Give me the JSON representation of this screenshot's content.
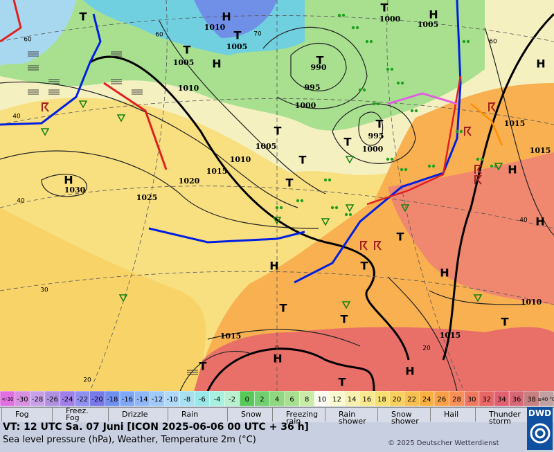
{
  "map": {
    "isobar_labels": [
      "1010",
      "1005",
      "1005",
      "1010",
      "990",
      "995",
      "1000",
      "1000",
      "1005",
      "995",
      "1000",
      "1005",
      "1010",
      "1015",
      "1020",
      "1025",
      "1030",
      "1015",
      "1015",
      "1010",
      "1015",
      "1015"
    ],
    "pressure_centers": [
      "H",
      "T",
      "T",
      "H",
      "T",
      "T",
      "H",
      "T",
      "T",
      "T",
      "T",
      "T",
      "T",
      "H",
      "H",
      "H",
      "H",
      "T",
      "T",
      "H",
      "H",
      "T",
      "T",
      "T",
      "H",
      "T",
      "T",
      "H"
    ],
    "grid_labels": [
      "60",
      "60",
      "70",
      "60",
      "40",
      "40",
      "40",
      "30",
      "20",
      "0",
      "20"
    ]
  },
  "temperature_scale": {
    "labels": [
      "<-30",
      -30,
      -28,
      -26,
      -24,
      -22,
      -20,
      -18,
      -16,
      -14,
      -12,
      -10,
      -8,
      -6,
      -4,
      -2,
      0,
      2,
      4,
      6,
      8,
      10,
      12,
      14,
      16,
      18,
      20,
      22,
      24,
      26,
      28,
      30,
      32,
      34,
      36,
      38,
      "≥40 °C"
    ]
  },
  "legend": {
    "entries": [
      "Fog",
      "Freez. Fog",
      "Drizzle",
      "Rain",
      "Snow",
      "Freezing rain",
      "Rain shower",
      "Snow shower",
      "Hail",
      "Thunder storm"
    ]
  },
  "footer": {
    "valid_time": "VT: 12 UTC Sa.  07 Juni [ICON 2025-06-06  00 UTC + 36 h]",
    "description": "Sea level pressure (hPa), Weather, Temperature 2m (°C)",
    "copyright": "© 2025 Deutscher Wetterdienst",
    "logo": "DWD"
  }
}
